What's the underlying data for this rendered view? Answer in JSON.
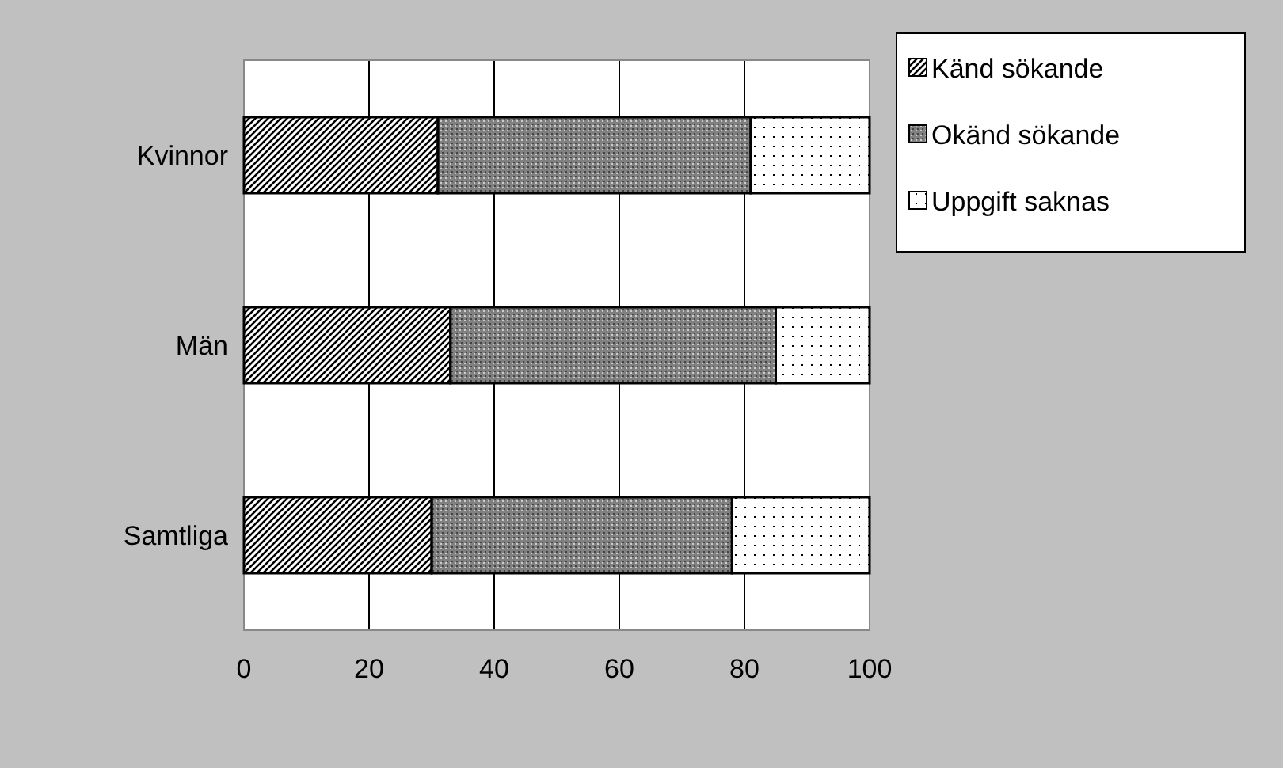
{
  "chart_data": {
    "type": "bar",
    "orientation": "horizontal",
    "stacked": true,
    "categories": [
      "Kvinnor",
      "Män",
      "Samtliga"
    ],
    "series": [
      {
        "name": "Känd sökande",
        "color": "#000000",
        "values": [
          31,
          33,
          30
        ]
      },
      {
        "name": "Okänd sökande",
        "color": "#808080",
        "values": [
          50,
          52,
          48
        ]
      },
      {
        "name": "Uppgift saknas",
        "color": "#ffffff",
        "values": [
          19,
          15,
          22
        ]
      }
    ],
    "xlim": [
      0,
      100
    ],
    "xticks": [
      0,
      20,
      40,
      60,
      80,
      100
    ],
    "grid": "x",
    "legend": "top right"
  }
}
